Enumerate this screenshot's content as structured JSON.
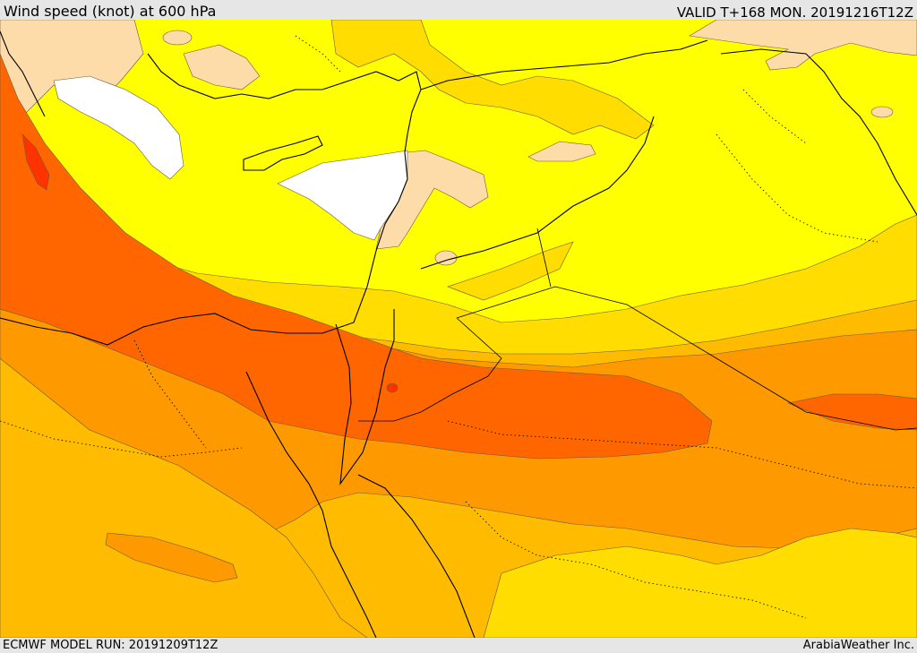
{
  "header": {
    "title": "Wind speed (knot) at 600 hPa",
    "valid": "VALID T+168 MON. 20191216T12Z"
  },
  "footer": {
    "model_run": "ECMWF MODEL RUN: 20191209T12Z",
    "brand": "ArabiaWeather Inc."
  },
  "map": {
    "colors": {
      "calm": "#ffffff",
      "light": "#fddcaa",
      "moderate": "#ffff00",
      "fresh": "#ffdd00",
      "strong": "#ffbb00",
      "very_strong": "#ff9900",
      "jet": "#ff6600",
      "jet_core": "#ff3300"
    }
  }
}
